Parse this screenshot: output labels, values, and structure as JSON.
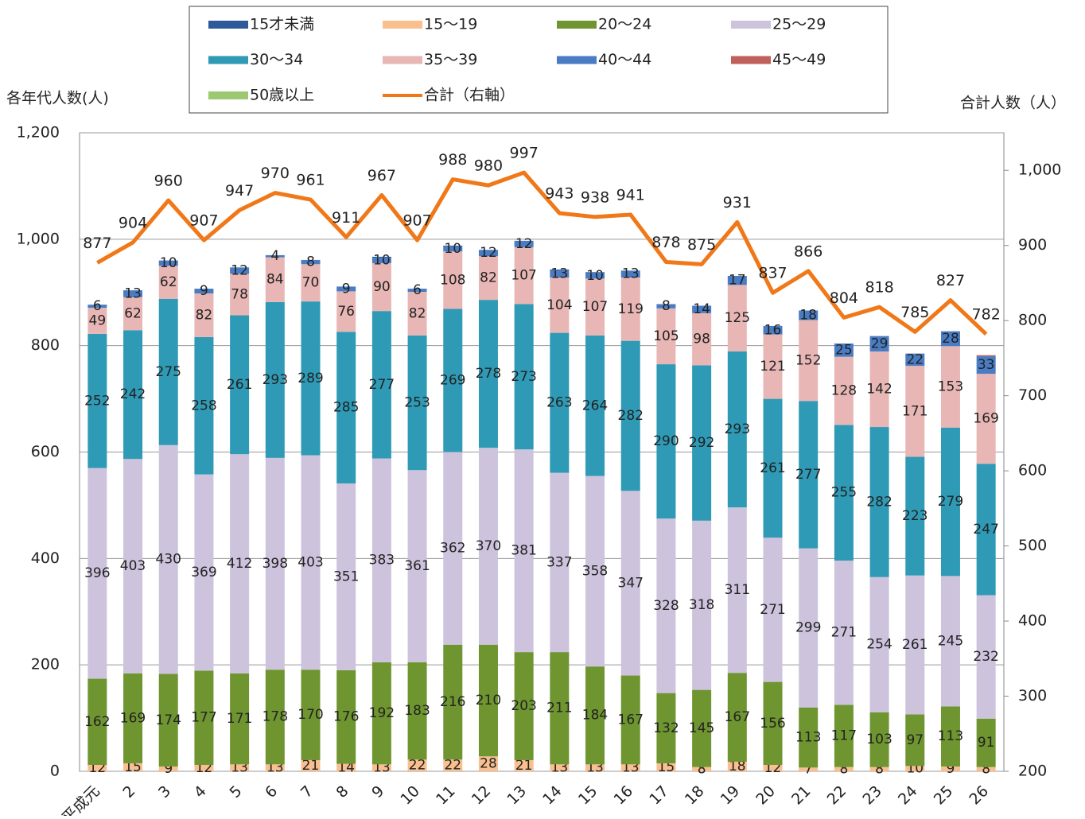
{
  "chart_data": {
    "type": "bar",
    "stacked": true,
    "y_label": "各年代人数(人)",
    "y2_label": "合計人数（人）",
    "categories": [
      "平成元",
      "2",
      "3",
      "4",
      "5",
      "6",
      "7",
      "8",
      "9",
      "10",
      "11",
      "12",
      "13",
      "14",
      "15",
      "16",
      "17",
      "18",
      "19",
      "20",
      "21",
      "22",
      "23",
      "24",
      "25",
      "26"
    ],
    "ylim": [
      0,
      1200
    ],
    "yticks": [
      0,
      200,
      400,
      600,
      800,
      {
        "value": 1000,
        "label": "1,000"
      },
      {
        "value": 1200,
        "label": "1,200"
      }
    ],
    "y2lim": [
      200,
      1050
    ],
    "y2ticks": [
      200,
      300,
      400,
      500,
      600,
      700,
      800,
      900,
      {
        "value": 1000,
        "label": "1,000"
      }
    ],
    "grid": true,
    "series": [
      {
        "name": "15才未満",
        "color": "#2e5a9c",
        "values": [
          0,
          0,
          0,
          0,
          0,
          0,
          0,
          0,
          2,
          0,
          1,
          0,
          0,
          2,
          2,
          0,
          0,
          0,
          0,
          0,
          0,
          0,
          0,
          1,
          0,
          0
        ]
      },
      {
        "name": "15～19",
        "color": "#f9bf8f",
        "values": [
          12,
          15,
          9,
          12,
          13,
          13,
          21,
          14,
          13,
          22,
          22,
          28,
          21,
          13,
          13,
          13,
          15,
          8,
          18,
          12,
          7,
          8,
          8,
          10,
          9,
          8
        ]
      },
      {
        "name": "20～24",
        "color": "#6f9530",
        "values": [
          162,
          169,
          174,
          177,
          171,
          178,
          170,
          176,
          192,
          183,
          216,
          210,
          203,
          211,
          184,
          167,
          132,
          145,
          167,
          156,
          113,
          117,
          103,
          97,
          113,
          91
        ]
      },
      {
        "name": "25～29",
        "color": "#cdc3dd",
        "values": [
          396,
          403,
          430,
          369,
          412,
          398,
          403,
          351,
          383,
          361,
          362,
          370,
          381,
          337,
          358,
          347,
          328,
          318,
          311,
          271,
          299,
          271,
          254,
          261,
          245,
          232
        ]
      },
      {
        "name": "30～34",
        "color": "#2e9ab5",
        "values": [
          252,
          242,
          275,
          258,
          261,
          293,
          289,
          285,
          277,
          253,
          269,
          278,
          273,
          263,
          264,
          282,
          290,
          292,
          293,
          261,
          277,
          255,
          282,
          223,
          279,
          247
        ]
      },
      {
        "name": "35～39",
        "color": "#e8b7b5",
        "values": [
          49,
          62,
          62,
          82,
          78,
          84,
          70,
          76,
          90,
          82,
          108,
          82,
          107,
          104,
          107,
          119,
          105,
          98,
          125,
          121,
          152,
          128,
          142,
          171,
          153,
          169
        ]
      },
      {
        "name": "40～44",
        "color": "#4a7cc4",
        "values": [
          6,
          13,
          10,
          9,
          12,
          4,
          8,
          9,
          10,
          6,
          10,
          12,
          12,
          13,
          10,
          13,
          8,
          14,
          17,
          16,
          18,
          25,
          29,
          22,
          28,
          33
        ]
      },
      {
        "name": "45～49",
        "color": "#c0605a",
        "values": [
          0,
          0,
          0,
          0,
          0,
          0,
          0,
          0,
          0,
          0,
          0,
          0,
          0,
          0,
          0,
          0,
          0,
          0,
          0,
          0,
          0,
          0,
          0,
          0,
          0,
          2
        ]
      },
      {
        "name": "50歳以上",
        "color": "#9bc870",
        "values": [
          0,
          0,
          0,
          0,
          0,
          0,
          0,
          0,
          0,
          0,
          0,
          0,
          0,
          0,
          0,
          0,
          0,
          0,
          0,
          0,
          0,
          0,
          0,
          0,
          0,
          0
        ]
      },
      {
        "name": "合計（右軸）",
        "color": "#f07818",
        "type": "line",
        "axis": "y2",
        "values": [
          877,
          904,
          960,
          907,
          947,
          970,
          961,
          911,
          967,
          907,
          988,
          980,
          997,
          943,
          938,
          941,
          878,
          875,
          931,
          837,
          866,
          804,
          818,
          785,
          827,
          782
        ]
      }
    ]
  }
}
